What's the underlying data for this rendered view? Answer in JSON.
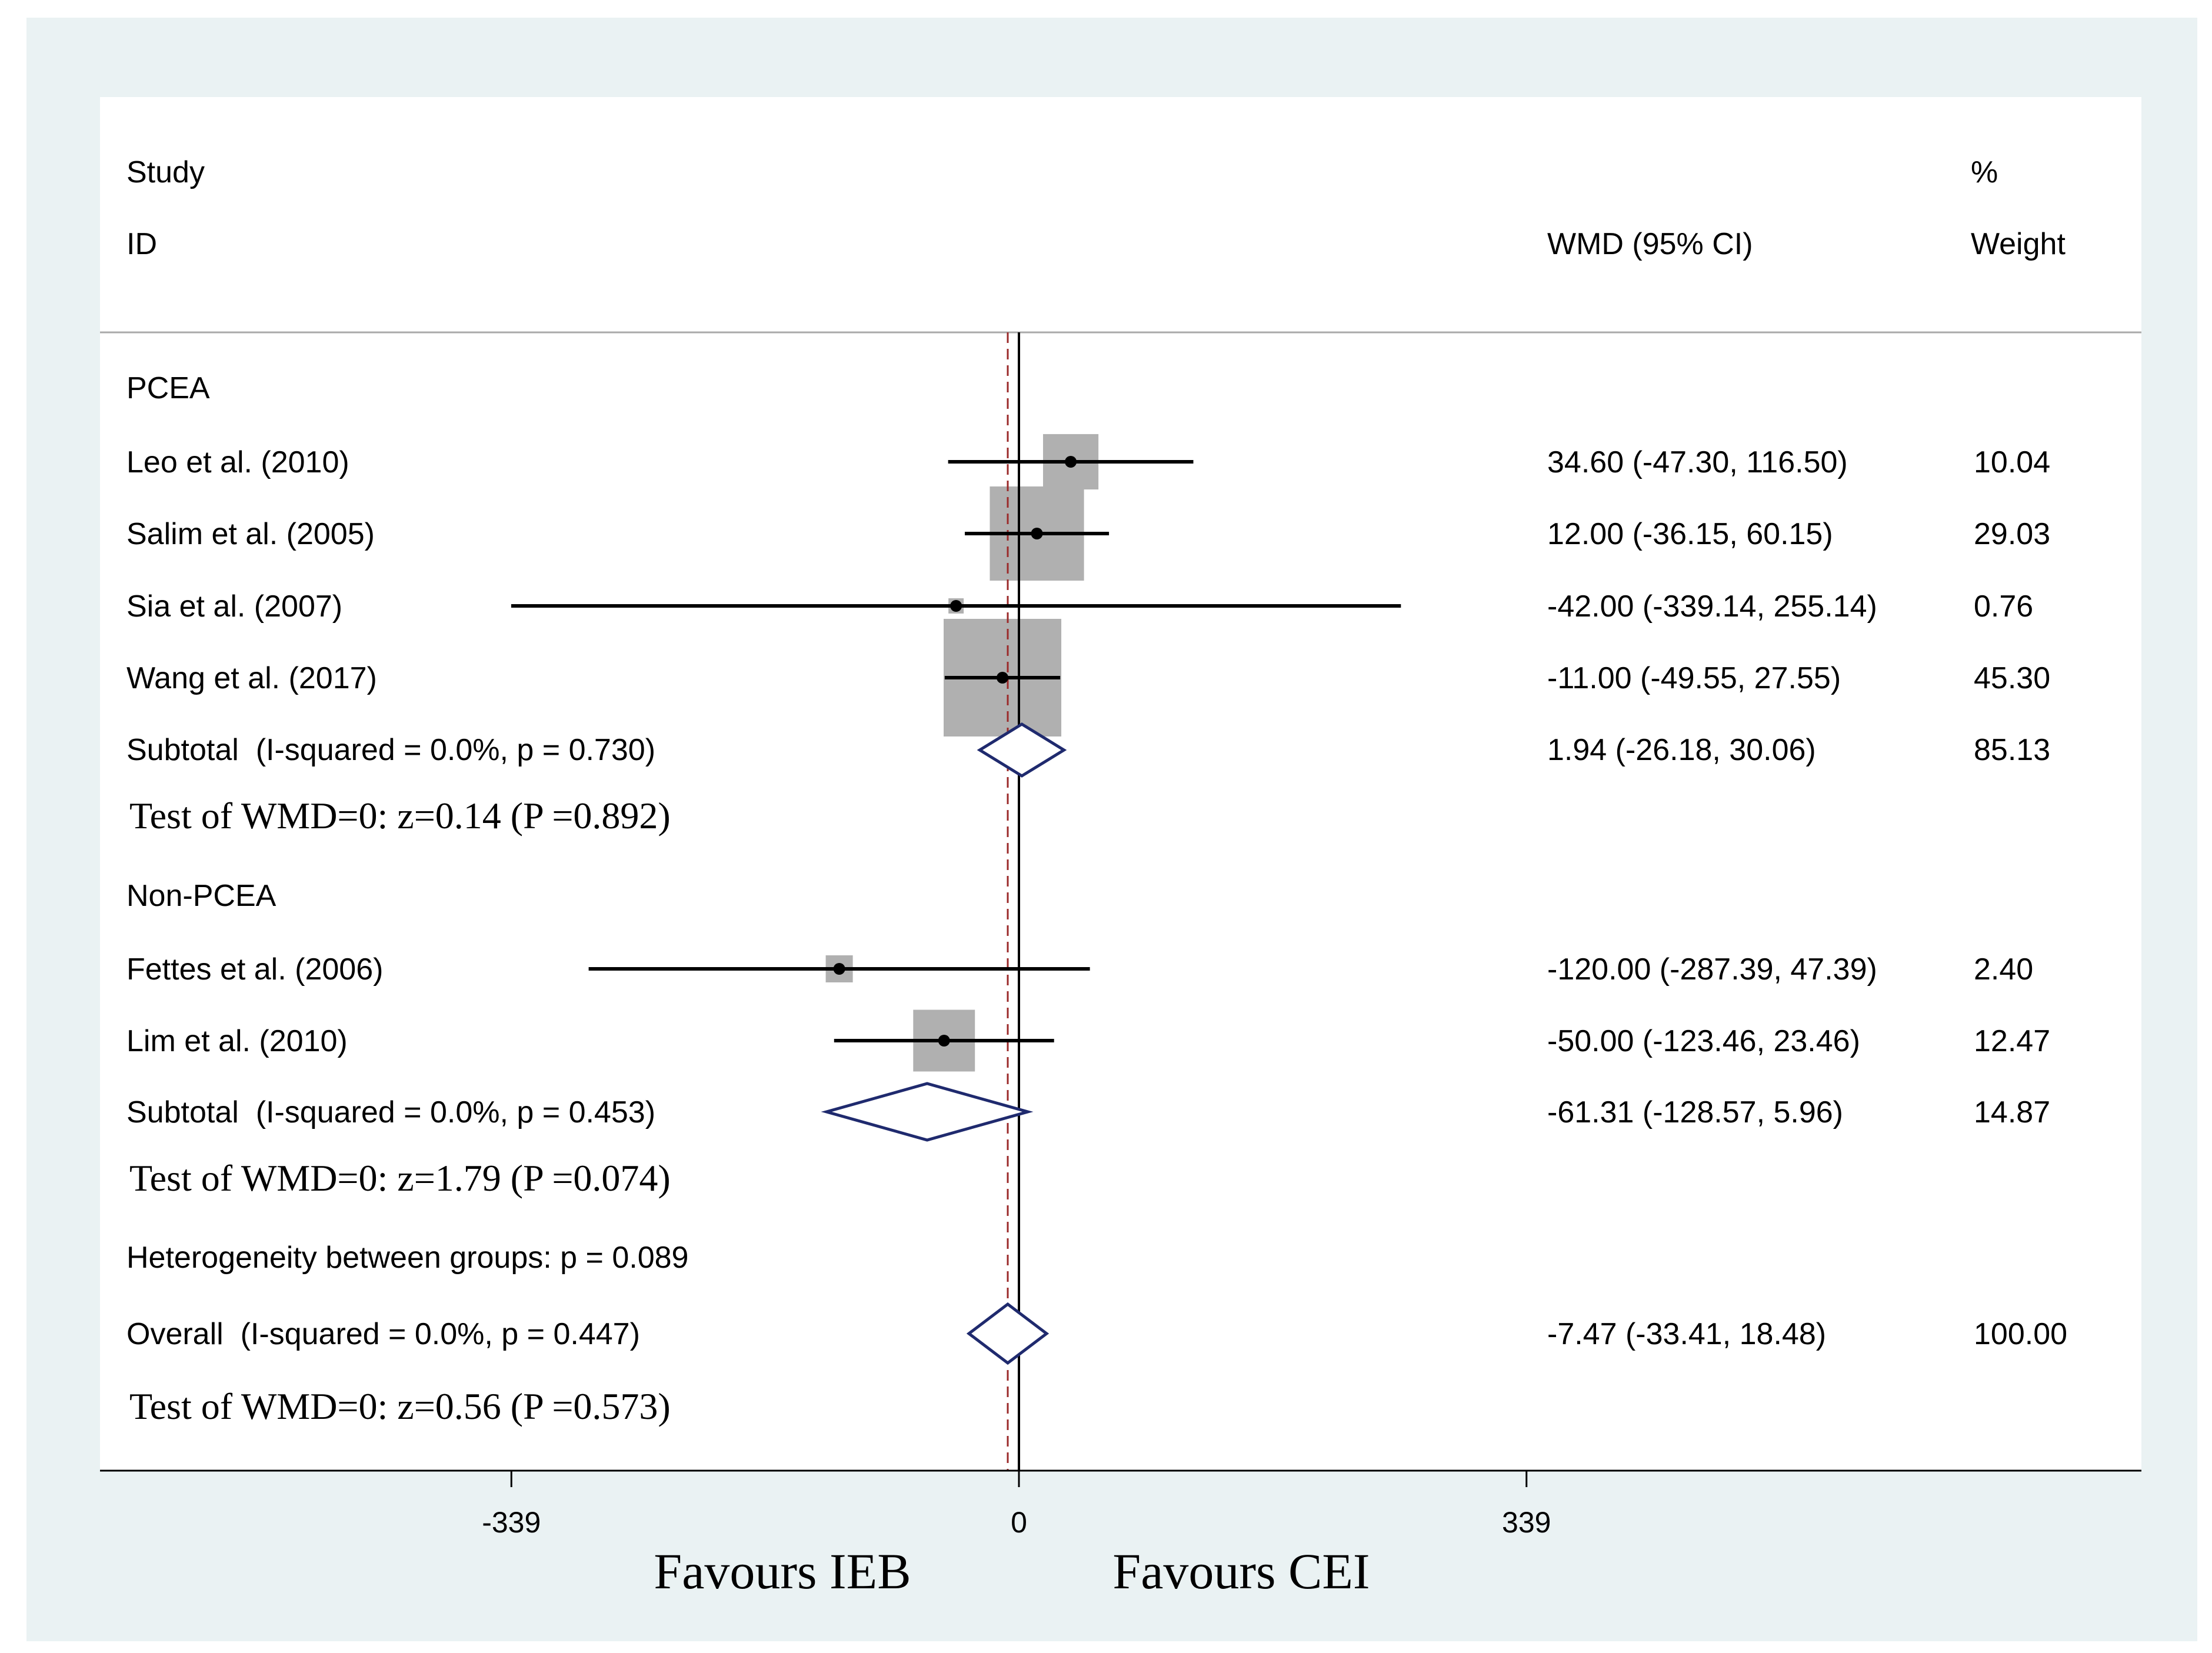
{
  "chart_data": {
    "type": "forest",
    "headers": {
      "study_line1": "Study",
      "study_line2": "ID",
      "effect": "WMD (95% CI)",
      "weight_line1": "%",
      "weight_line2": "Weight"
    },
    "axis": {
      "tick_values": [
        -339,
        0,
        339
      ],
      "tick_labels": [
        "-339",
        "0",
        "339"
      ],
      "null_value": 0,
      "overall_estimate": -7.47,
      "left_label": "Favours IEB",
      "right_label": "Favours CEI"
    },
    "groups": [
      {
        "name": "PCEA",
        "studies": [
          {
            "label": "Leo et al. (2010)",
            "est": 34.6,
            "lo": -47.3,
            "hi": 116.5,
            "ci_text": "34.60 (-47.30, 116.50)",
            "weight": 10.04,
            "weight_text": "10.04"
          },
          {
            "label": "Salim et al. (2005)",
            "est": 12.0,
            "lo": -36.15,
            "hi": 60.15,
            "ci_text": "12.00 (-36.15, 60.15)",
            "weight": 29.03,
            "weight_text": "29.03"
          },
          {
            "label": "Sia et al. (2007)",
            "est": -42.0,
            "lo": -339.14,
            "hi": 255.14,
            "ci_text": "-42.00 (-339.14, 255.14)",
            "weight": 0.76,
            "weight_text": "0.76"
          },
          {
            "label": "Wang et al. (2017)",
            "est": -11.0,
            "lo": -49.55,
            "hi": 27.55,
            "ci_text": "-11.00 (-49.55, 27.55)",
            "weight": 45.3,
            "weight_text": "45.30"
          }
        ],
        "subtotal": {
          "label": "Subtotal  (I-squared = 0.0%, p = 0.730)",
          "est": 1.94,
          "lo": -26.18,
          "hi": 30.06,
          "ci_text": "1.94 (-26.18, 30.06)",
          "weight_text": "85.13"
        },
        "test": "Test of WMD=0: z=0.14 (P =0.892)"
      },
      {
        "name": "Non-PCEA",
        "studies": [
          {
            "label": "Fettes et al. (2006)",
            "est": -120.0,
            "lo": -287.39,
            "hi": 47.39,
            "ci_text": "-120.00 (-287.39, 47.39)",
            "weight": 2.4,
            "weight_text": "2.40"
          },
          {
            "label": "Lim et al. (2010)",
            "est": -50.0,
            "lo": -123.46,
            "hi": 23.46,
            "ci_text": "-50.00 (-123.46, 23.46)",
            "weight": 12.47,
            "weight_text": "12.47"
          }
        ],
        "subtotal": {
          "label": "Subtotal  (I-squared = 0.0%, p = 0.453)",
          "est": -61.31,
          "lo": -128.57,
          "hi": 5.96,
          "ci_text": "-61.31 (-128.57, 5.96)",
          "weight_text": "14.87"
        },
        "test": "Test of WMD=0: z=1.79 (P =0.074)"
      }
    ],
    "heterogeneity": "Heterogeneity between groups: p = 0.089",
    "overall": {
      "label": "Overall  (I-squared = 0.0%, p = 0.447)",
      "est": -7.47,
      "lo": -33.41,
      "hi": 18.48,
      "ci_text": "-7.47 (-33.41, 18.48)",
      "weight_text": "100.00"
    },
    "overall_test": "Test of WMD=0: z=0.56 (P =0.573)",
    "colors": {
      "frame_bg": "#eaf2f3",
      "plot_bg": "#ffffff",
      "box": "#b0b0b0",
      "diamond": "#1f2a6e",
      "null_line": "#000000",
      "overall_line": "#9b2a2a",
      "text": "#000000"
    }
  }
}
